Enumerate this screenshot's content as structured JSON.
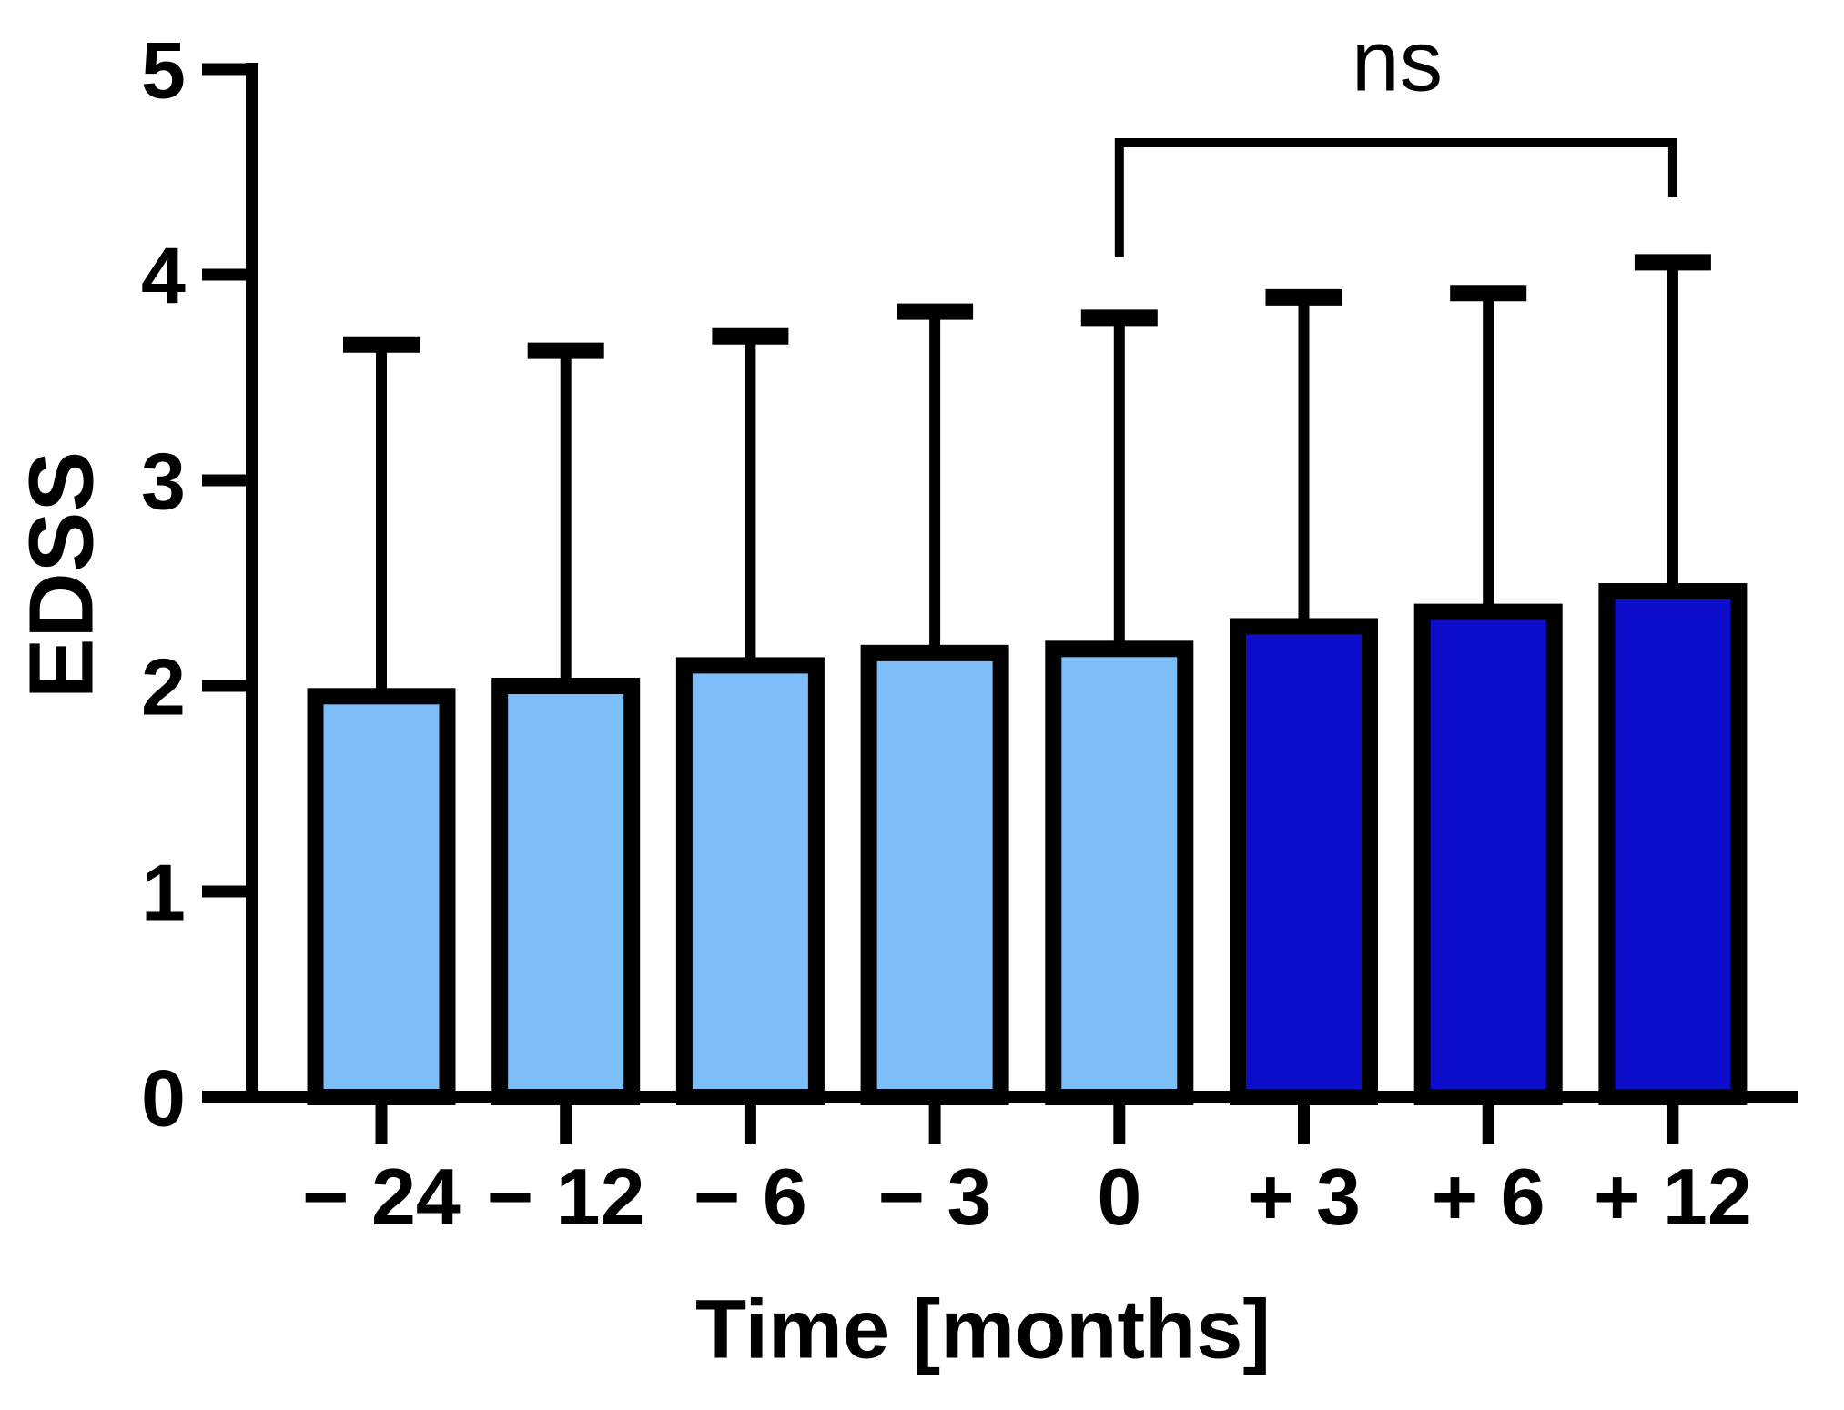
{
  "chart_data": {
    "type": "bar",
    "title": "",
    "xlabel": "Time [months]",
    "ylabel": "EDSS",
    "categories": [
      "− 24",
      "− 12",
      "− 6",
      "− 3",
      "0",
      "+ 3",
      "+ 6",
      "+ 12"
    ],
    "values": [
      1.95,
      2.0,
      2.1,
      2.16,
      2.18,
      2.29,
      2.36,
      2.46
    ],
    "error_bar_tops": [
      3.7,
      3.67,
      3.74,
      3.86,
      3.83,
      3.93,
      3.95,
      4.1
    ],
    "bar_groups": [
      "light",
      "light",
      "light",
      "light",
      "light",
      "dark",
      "dark",
      "dark"
    ],
    "ylim": [
      0,
      5
    ],
    "yticks": [
      "0",
      "1",
      "2",
      "3",
      "4",
      "5"
    ],
    "grid": "off",
    "legend": "none",
    "colors": {
      "light_blue": "#7DBEF8",
      "dark_blue": "#0D0ECC",
      "outline": "#000000",
      "axis": "#000000"
    },
    "annotation": {
      "label": "ns",
      "from_category": "0",
      "to_category": "+ 12"
    }
  }
}
